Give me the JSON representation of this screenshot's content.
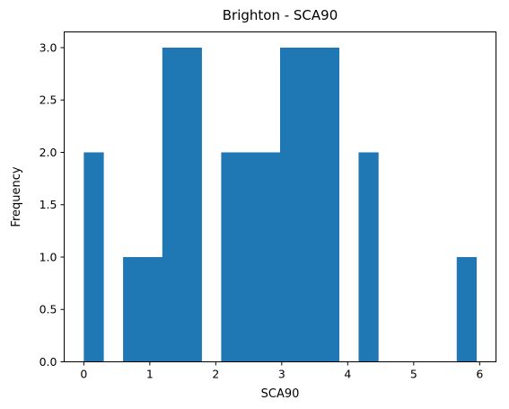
{
  "chart_data": {
    "type": "bar",
    "title": "Brighton - SCA90",
    "xlabel": "SCA90",
    "ylabel": "Frequency",
    "xlim": [
      -0.2975,
      6.2475
    ],
    "ylim": [
      0,
      3.15
    ],
    "xticks": [
      "0",
      "1",
      "2",
      "3",
      "4",
      "5",
      "6"
    ],
    "xtick_values": [
      0,
      1,
      2,
      3,
      4,
      5,
      6
    ],
    "yticks": [
      "0.0",
      "0.5",
      "1.0",
      "1.5",
      "2.0",
      "2.5",
      "3.0"
    ],
    "ytick_values": [
      0,
      0.5,
      1.0,
      1.5,
      2.0,
      2.5,
      3.0
    ],
    "bin_edges": [
      0.0,
      0.2975,
      0.595,
      0.8925,
      1.19,
      1.4875,
      1.785,
      2.0825,
      2.38,
      2.6775,
      2.975,
      3.2725,
      3.57,
      3.8675,
      4.165,
      4.4625,
      4.76,
      5.0575,
      5.355,
      5.6525,
      5.95
    ],
    "counts": [
      2,
      0,
      1,
      1,
      3,
      3,
      0,
      2,
      2,
      2,
      3,
      3,
      3,
      0,
      2,
      0,
      0,
      0,
      0,
      1
    ],
    "grid": false,
    "bar_color": "#1f77b4"
  }
}
